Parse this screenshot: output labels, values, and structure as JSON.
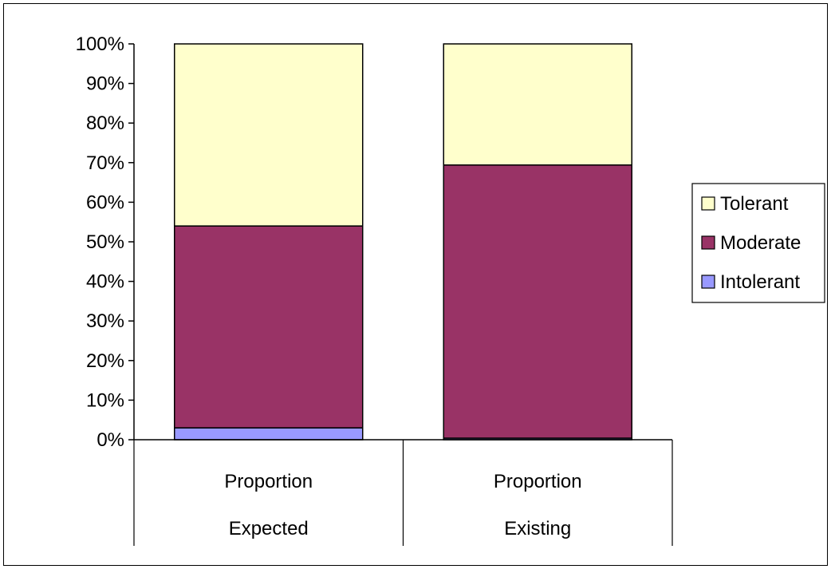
{
  "chart_data": {
    "type": "bar",
    "stacked": true,
    "title": "",
    "xlabel": "",
    "ylabel": "",
    "ylim": [
      0,
      100
    ],
    "y_ticks": [
      "0%",
      "10%",
      "20%",
      "30%",
      "40%",
      "50%",
      "60%",
      "70%",
      "80%",
      "90%",
      "100%"
    ],
    "y_tick_values": [
      0,
      10,
      20,
      30,
      40,
      50,
      60,
      70,
      80,
      90,
      100
    ],
    "categories": [
      {
        "line1": "Proportion",
        "line2": "Expected"
      },
      {
        "line1": "Proportion",
        "line2": "Existing"
      }
    ],
    "series": [
      {
        "name": "Intolerant",
        "color": "#9999ff",
        "values": [
          3,
          0.4
        ]
      },
      {
        "name": "Moderate",
        "color": "#993366",
        "values": [
          51,
          69
        ]
      },
      {
        "name": "Tolerant",
        "color": "#ffffcc",
        "values": [
          46,
          30.6
        ]
      }
    ],
    "legend": {
      "placement": "right",
      "items": [
        {
          "label": "Tolerant",
          "color": "#ffffcc"
        },
        {
          "label": "Moderate",
          "color": "#993366"
        },
        {
          "label": "Intolerant",
          "color": "#9999ff"
        }
      ]
    },
    "grid": false
  }
}
